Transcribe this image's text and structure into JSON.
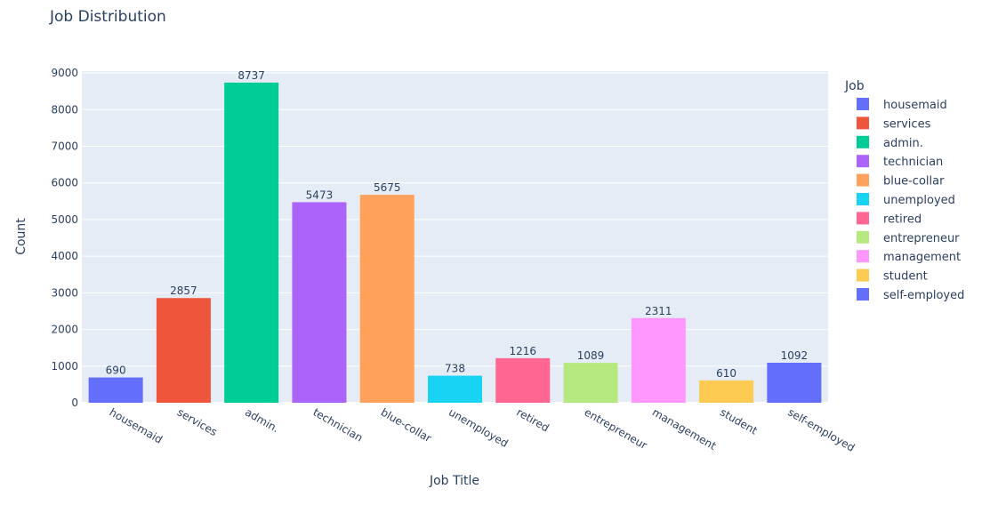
{
  "chart_data": {
    "type": "bar",
    "title": "Job Distribution",
    "xlabel": "Job Title",
    "ylabel": "Count",
    "ylim": [
      0,
      9050
    ],
    "yticks": [
      0,
      1000,
      2000,
      3000,
      4000,
      5000,
      6000,
      7000,
      8000,
      9000
    ],
    "grid": true,
    "legend_title": "Job",
    "legend_position": "right",
    "categories": [
      "housemaid",
      "services",
      "admin.",
      "technician",
      "blue-collar",
      "unemployed",
      "retired",
      "entrepreneur",
      "management",
      "student",
      "self-employed"
    ],
    "values": [
      690,
      2857,
      8737,
      5473,
      5675,
      738,
      1216,
      1089,
      2311,
      610,
      1092
    ],
    "colors": [
      "#636efa",
      "#EF553B",
      "#00cc96",
      "#ab63fa",
      "#FFA15A",
      "#19d3f3",
      "#FF6692",
      "#B6E880",
      "#FF97FF",
      "#FECB52",
      "#636efa"
    ]
  }
}
